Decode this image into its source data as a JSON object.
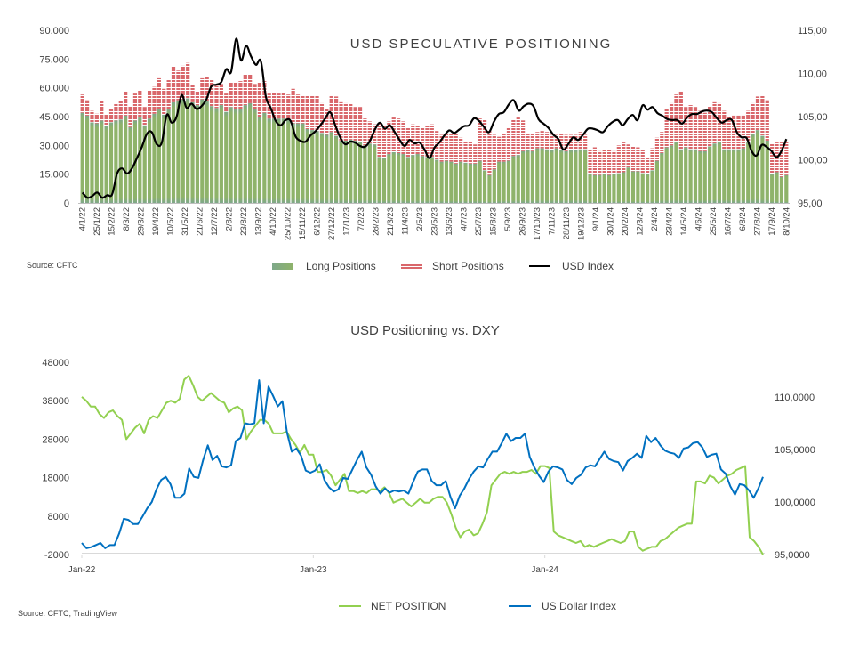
{
  "chart_data": [
    {
      "type": "bar",
      "stacked": true,
      "title": "USD SPECULATIVE POSITIONING",
      "source": "Source: CFTC",
      "ylim": [
        0,
        90000
      ],
      "y_ticks": [
        "0",
        "15.000",
        "30.000",
        "45.000",
        "60.000",
        "75.000",
        "90.000"
      ],
      "y_tick_values": [
        0,
        15000,
        30000,
        45000,
        60000,
        75000,
        90000
      ],
      "y2lim": [
        95,
        115
      ],
      "y2_ticks": [
        "95,00",
        "100,00",
        "105,00",
        "110,00",
        "115,00"
      ],
      "y2_tick_values": [
        95,
        100,
        105,
        110,
        115
      ],
      "x_tick_labels": [
        "4/1/22",
        "25/1/22",
        "15/2/22",
        "8/3/22",
        "29/3/22",
        "19/4/22",
        "10/5/22",
        "31/5/22",
        "21/6/22",
        "12/7/22",
        "2/8/22",
        "23/8/22",
        "13/9/22",
        "4/10/22",
        "25/10/22",
        "15/11/22",
        "6/12/22",
        "27/12/22",
        "17/1/23",
        "7/2/23",
        "28/2/23",
        "21/3/23",
        "11/4/23",
        "2/5/23",
        "23/5/23",
        "13/6/23",
        "4/7/23",
        "25/7/23",
        "15/8/23",
        "5/9/23",
        "26/9/23",
        "17/10/23",
        "7/11/23",
        "28/11/23",
        "19/12/23",
        "9/1/24",
        "30/1/24",
        "20/2/24",
        "12/3/24",
        "2/4/24",
        "23/4/24",
        "14/5/24",
        "4/6/24",
        "25/6/24",
        "16/7/24",
        "6/8/24",
        "27/8/24",
        "17/9/24",
        "8/10/24"
      ],
      "legend": [
        {
          "name": "Long Positions",
          "color": "#8fb36a"
        },
        {
          "name": "Short Positions",
          "color": "#d9676b"
        },
        {
          "name": "USD Index",
          "color": "#000000"
        }
      ],
      "series": [
        {
          "name": "Long Positions",
          "axis": "left",
          "values": [
            47000,
            45500,
            42000,
            41500,
            43000,
            40000,
            42000,
            43000,
            43500,
            45500,
            39500,
            43000,
            44500,
            40500,
            44000,
            46500,
            49000,
            46000,
            49000,
            52500,
            53500,
            54000,
            54500,
            52500,
            51000,
            54000,
            53000,
            50500,
            49500,
            51000,
            47500,
            50000,
            49000,
            49000,
            51000,
            52000,
            49000,
            45000,
            47000,
            44000,
            44000,
            44000,
            44000,
            43500,
            41500,
            41500,
            41500,
            38500,
            38000,
            37500,
            36500,
            35500,
            37000,
            35000,
            32500,
            32500,
            33000,
            32500,
            32000,
            30000,
            31000,
            30500,
            24000,
            23500,
            25500,
            26500,
            26000,
            25500,
            24000,
            25000,
            25500,
            24500,
            24000,
            24000,
            22500,
            21500,
            22000,
            21500,
            20500,
            21500,
            21000,
            20500,
            20500,
            22000,
            17000,
            14500,
            17500,
            21500,
            21500,
            22000,
            24500,
            25000,
            27000,
            27500,
            27000,
            28500,
            28500,
            28000,
            27500,
            28500,
            27500,
            27000,
            27500,
            27500,
            28000,
            28000,
            15000,
            14500,
            14500,
            15000,
            14500,
            15000,
            15500,
            16000,
            18500,
            16500,
            16500,
            15500,
            15000,
            17000,
            22000,
            26000,
            29000,
            30000,
            32000,
            28000,
            29000,
            28000,
            28000,
            27000,
            27000,
            29500,
            31000,
            32000,
            28000,
            28000,
            28000,
            28000,
            28500,
            32000,
            36000,
            38000,
            35000,
            32500,
            15000,
            16000,
            13500,
            14500
          ]
        },
        {
          "name": "Short Positions",
          "axis": "left",
          "values": [
            9500,
            8000,
            6000,
            5000,
            10000,
            6000,
            7000,
            8500,
            9500,
            12500,
            11000,
            14000,
            14000,
            9500,
            14500,
            14000,
            16000,
            13500,
            15000,
            18500,
            15500,
            17500,
            18500,
            9000,
            7000,
            11000,
            12500,
            13500,
            11500,
            11000,
            9500,
            13000,
            14000,
            14500,
            16000,
            15000,
            13000,
            18000,
            16500,
            13000,
            13500,
            13000,
            13500,
            13000,
            18000,
            15000,
            14500,
            17500,
            18000,
            18500,
            15500,
            13500,
            19000,
            20500,
            20000,
            19500,
            18500,
            17500,
            18000,
            14000,
            11500,
            10500,
            17500,
            17000,
            17000,
            18000,
            18000,
            17000,
            15000,
            16000,
            15000,
            14500,
            16500,
            17000,
            15000,
            14000,
            14500,
            15000,
            15500,
            12500,
            11000,
            11500,
            10000,
            22000,
            26500,
            23000,
            18000,
            13000,
            15000,
            17000,
            19000,
            19500,
            16000,
            9000,
            9500,
            8500,
            9000,
            9000,
            8000,
            7000,
            8500,
            8500,
            8000,
            8000,
            9000,
            7500,
            13000,
            14500,
            12500,
            13000,
            13000,
            12000,
            14500,
            15500,
            12000,
            13000,
            12500,
            12500,
            9000,
            11500,
            12000,
            11000,
            20000,
            22000,
            24500,
            30000,
            21000,
            23000,
            22000,
            21000,
            20000,
            21000,
            21500,
            20000,
            20000,
            17000,
            17500,
            17500,
            17000,
            16000,
            16000,
            17500,
            21000,
            21000,
            16000,
            15500,
            18000,
            18000
          ]
        },
        {
          "name": "USD Index",
          "axis": "right",
          "values": [
            96.2,
            95.6,
            95.8,
            96.2,
            95.6,
            95.9,
            96.0,
            98.4,
            99.0,
            98.4,
            99.0,
            100.2,
            101.5,
            103.0,
            103.2,
            101.8,
            102.0,
            105.2,
            104.3,
            105.0,
            107.5,
            106.0,
            106.5,
            105.9,
            106.2,
            107.0,
            108.5,
            108.7,
            109.0,
            110.5,
            110.2,
            114.0,
            111.5,
            113.2,
            112.0,
            111.0,
            111.4,
            107.3,
            106.0,
            104.5,
            104.0,
            104.6,
            104.5,
            102.7,
            102.2,
            102.1,
            102.8,
            103.3,
            104.0,
            104.8,
            105.5,
            104.0,
            102.6,
            101.8,
            102.1,
            102.0,
            101.6,
            101.5,
            102.2,
            103.5,
            104.3,
            103.6,
            104.0,
            103.2,
            102.3,
            101.6,
            102.3,
            101.9,
            102.0,
            101.2,
            100.2,
            101.4,
            102.0,
            102.8,
            103.4,
            103.1,
            103.5,
            103.9,
            104.0,
            104.8,
            104.5,
            103.8,
            103.2,
            104.4,
            105.3,
            105.5,
            106.4,
            106.9,
            105.7,
            106.2,
            106.5,
            106.2,
            104.7,
            104.2,
            103.7,
            102.9,
            102.4,
            101.2,
            101.8,
            102.6,
            102.3,
            102.9,
            103.6,
            103.6,
            103.4,
            103.2,
            103.9,
            104.4,
            104.6,
            104.0,
            104.7,
            105.2,
            104.6,
            106.3,
            105.8,
            106.1,
            105.4,
            105.1,
            104.7,
            104.6,
            104.6,
            104.2,
            104.9,
            105.3,
            105.3,
            105.6,
            105.7,
            105.5,
            104.8,
            104.3,
            104.6,
            104.6,
            103.2,
            102.6,
            102.5,
            101.0,
            100.5,
            101.7,
            101.5,
            101.0,
            100.3,
            101.0,
            102.4
          ]
        }
      ]
    },
    {
      "type": "line",
      "title": "USD Positioning vs. DXY",
      "source": "Source: CFTC, TradingView",
      "ylim": [
        -2000,
        48000
      ],
      "y_ticks": [
        "-2000",
        "8000",
        "18000",
        "28000",
        "38000",
        "48000"
      ],
      "y_tick_values": [
        -2000,
        8000,
        18000,
        28000,
        38000,
        48000
      ],
      "y2lim": [
        95,
        115
      ],
      "y2_ticks": [
        "95,0000",
        "100,0000",
        "105,0000",
        "110,0000"
      ],
      "y2_tick_values": [
        95,
        100,
        105,
        110
      ],
      "x_tick_labels": [
        "Jan-22",
        "Jan-23",
        "Jan-24"
      ],
      "x_tick_positions_index": [
        0,
        52,
        104
      ],
      "legend": [
        {
          "name": "NET POSITION",
          "color": "#92d050"
        },
        {
          "name": "US Dollar Index",
          "color": "#0070c0"
        }
      ],
      "series": [
        {
          "name": "NET POSITION",
          "axis": "left",
          "values": [
            39000,
            38000,
            36500,
            36500,
            34500,
            33500,
            35000,
            35500,
            34000,
            33000,
            28000,
            29500,
            31000,
            32000,
            29500,
            33000,
            34000,
            33500,
            35500,
            37500,
            38000,
            37500,
            38500,
            43500,
            44500,
            42000,
            39000,
            38000,
            39000,
            40000,
            39000,
            38000,
            37500,
            35000,
            36000,
            36500,
            35500,
            28000,
            30000,
            31500,
            33000,
            33000,
            32000,
            29500,
            29500,
            29500,
            30000,
            28000,
            26500,
            24500,
            26500,
            24000,
            24000,
            19500,
            19500,
            20000,
            18500,
            16000,
            17500,
            19000,
            14500,
            14500,
            14000,
            14500,
            14000,
            15000,
            15000,
            14500,
            15500,
            14000,
            11500,
            12000,
            12500,
            11500,
            10500,
            11500,
            12500,
            11500,
            11500,
            12500,
            13000,
            13000,
            11500,
            8500,
            5000,
            2500,
            4000,
            4500,
            3000,
            3500,
            6000,
            9000,
            16000,
            17500,
            19000,
            19500,
            19000,
            19500,
            19000,
            19500,
            19500,
            20000,
            19000,
            21000,
            21000,
            20500,
            4000,
            3000,
            2500,
            2000,
            1500,
            1000,
            1500,
            0,
            500,
            0,
            500,
            1000,
            1500,
            2000,
            1500,
            1000,
            1500,
            4000,
            4000,
            0,
            -1000,
            -500,
            0,
            0,
            1500,
            2000,
            3000,
            4000,
            5000,
            5500,
            6000,
            6000,
            17000,
            17000,
            16500,
            18500,
            18000,
            16500,
            17500,
            18500,
            19000,
            20000,
            20500,
            21000,
            2500,
            1500,
            0,
            -2000
          ]
        },
        {
          "name": "US Dollar Index",
          "axis": "right",
          "values": [
            96.1,
            95.6,
            95.7,
            95.9,
            96.1,
            95.6,
            95.9,
            95.9,
            97.0,
            98.4,
            98.3,
            97.9,
            97.9,
            98.6,
            99.4,
            100.0,
            101.2,
            102.1,
            102.4,
            101.7,
            100.4,
            100.4,
            100.8,
            103.2,
            102.4,
            102.3,
            104.0,
            105.4,
            104.0,
            104.4,
            103.4,
            103.3,
            103.5,
            105.8,
            106.1,
            107.5,
            107.4,
            107.5,
            111.6,
            107.5,
            111.0,
            110.1,
            109.1,
            109.6,
            106.6,
            104.8,
            105.1,
            104.4,
            103.0,
            102.8,
            103.0,
            103.6,
            102.1,
            101.4,
            101.0,
            101.2,
            102.3,
            102.2,
            103.1,
            104.0,
            104.8,
            103.3,
            102.6,
            101.5,
            100.8,
            101.3,
            100.9,
            101.1,
            101.0,
            101.1,
            100.8,
            101.9,
            102.9,
            103.1,
            103.1,
            102.0,
            101.6,
            101.6,
            102.0,
            100.5,
            99.4,
            100.6,
            101.3,
            102.2,
            102.9,
            103.4,
            103.3,
            104.1,
            104.8,
            104.8,
            105.6,
            106.5,
            105.8,
            106.1,
            106.1,
            106.5,
            104.3,
            103.3,
            102.5,
            101.9,
            102.9,
            103.4,
            103.3,
            103.1,
            102.1,
            101.7,
            102.3,
            102.6,
            103.3,
            103.5,
            103.4,
            104.1,
            104.8,
            104.1,
            103.9,
            103.8,
            103.0,
            103.9,
            104.2,
            104.6,
            104.2,
            106.3,
            105.7,
            106.1,
            105.4,
            104.9,
            104.7,
            104.6,
            104.2,
            105.1,
            105.2,
            105.6,
            105.7,
            105.2,
            104.3,
            104.5,
            104.6,
            103.1,
            102.7,
            101.5,
            100.7,
            101.7,
            101.6,
            101.1,
            100.4,
            101.3,
            102.4
          ]
        }
      ]
    }
  ]
}
